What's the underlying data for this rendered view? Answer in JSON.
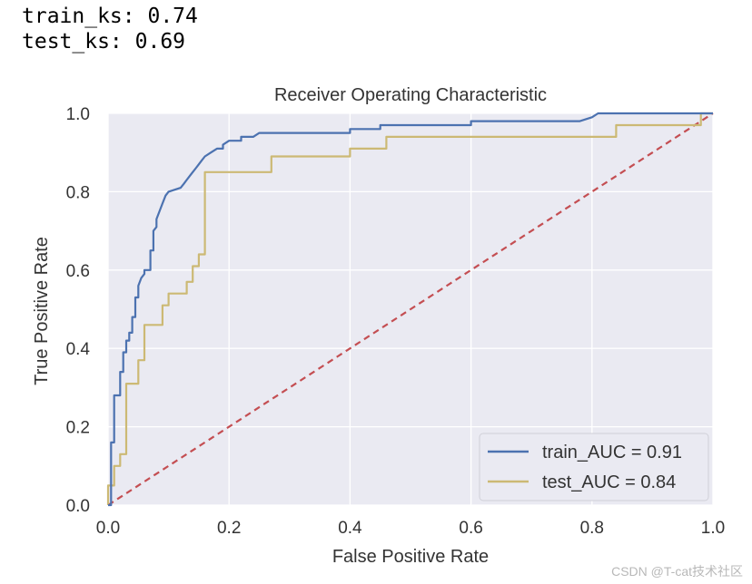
{
  "output": {
    "line1": "train_ks: 0.74",
    "line2": "test_ks: 0.69"
  },
  "watermark": "CSDN @T-cat技术社区",
  "chart_data": {
    "type": "line",
    "title": "Receiver Operating Characteristic",
    "xlabel": "False Positive Rate",
    "ylabel": "True Positive Rate",
    "xlim": [
      0,
      1
    ],
    "ylim": [
      0,
      1
    ],
    "xticks": [
      "0.0",
      "0.2",
      "0.4",
      "0.6",
      "0.8",
      "1.0"
    ],
    "yticks": [
      "0.0",
      "0.2",
      "0.4",
      "0.6",
      "0.8",
      "1.0"
    ],
    "grid": true,
    "legend_position": "lower-right",
    "colors": {
      "background": "#eaeaf2",
      "grid": "#ffffff",
      "train": "#4c72b0",
      "test": "#ccb974",
      "diagonal": "#c44e52"
    },
    "series": [
      {
        "name": "train_AUC = 0.91",
        "color": "#4c72b0",
        "x": [
          0,
          0.005,
          0.005,
          0.01,
          0.01,
          0.02,
          0.02,
          0.025,
          0.025,
          0.03,
          0.03,
          0.035,
          0.035,
          0.04,
          0.04,
          0.045,
          0.045,
          0.05,
          0.05,
          0.055,
          0.06,
          0.06,
          0.07,
          0.07,
          0.075,
          0.075,
          0.08,
          0.08,
          0.085,
          0.09,
          0.095,
          0.1,
          0.12,
          0.125,
          0.13,
          0.135,
          0.14,
          0.145,
          0.15,
          0.155,
          0.16,
          0.17,
          0.18,
          0.19,
          0.19,
          0.2,
          0.22,
          0.22,
          0.24,
          0.25,
          0.3,
          0.4,
          0.4,
          0.44,
          0.45,
          0.45,
          0.6,
          0.6,
          0.78,
          0.8,
          0.81,
          0.83,
          1.0
        ],
        "y": [
          0,
          0,
          0.16,
          0.16,
          0.28,
          0.28,
          0.34,
          0.34,
          0.39,
          0.39,
          0.42,
          0.42,
          0.44,
          0.44,
          0.48,
          0.48,
          0.53,
          0.53,
          0.56,
          0.58,
          0.59,
          0.6,
          0.6,
          0.65,
          0.65,
          0.7,
          0.71,
          0.73,
          0.75,
          0.77,
          0.79,
          0.8,
          0.81,
          0.82,
          0.83,
          0.84,
          0.85,
          0.86,
          0.87,
          0.88,
          0.89,
          0.9,
          0.91,
          0.91,
          0.92,
          0.93,
          0.93,
          0.94,
          0.94,
          0.95,
          0.95,
          0.95,
          0.96,
          0.96,
          0.96,
          0.97,
          0.97,
          0.98,
          0.98,
          0.99,
          1.0,
          1.0,
          1.0
        ]
      },
      {
        "name": "test_AUC = 0.84",
        "color": "#ccb974",
        "x": [
          0,
          0,
          0.01,
          0.01,
          0.02,
          0.02,
          0.03,
          0.03,
          0.05,
          0.05,
          0.06,
          0.06,
          0.09,
          0.09,
          0.1,
          0.1,
          0.13,
          0.13,
          0.14,
          0.14,
          0.15,
          0.15,
          0.16,
          0.16,
          0.27,
          0.27,
          0.4,
          0.4,
          0.46,
          0.46,
          0.84,
          0.84,
          0.98,
          0.98,
          1.0
        ],
        "y": [
          0,
          0.05,
          0.05,
          0.1,
          0.1,
          0.13,
          0.13,
          0.31,
          0.31,
          0.37,
          0.37,
          0.46,
          0.46,
          0.51,
          0.51,
          0.54,
          0.54,
          0.57,
          0.57,
          0.61,
          0.61,
          0.64,
          0.64,
          0.85,
          0.85,
          0.89,
          0.89,
          0.91,
          0.91,
          0.94,
          0.94,
          0.97,
          0.97,
          1.0,
          1.0
        ]
      },
      {
        "name": "",
        "color": "#c44e52",
        "dashed": true,
        "x": [
          0,
          1
        ],
        "y": [
          0,
          1
        ]
      }
    ]
  }
}
